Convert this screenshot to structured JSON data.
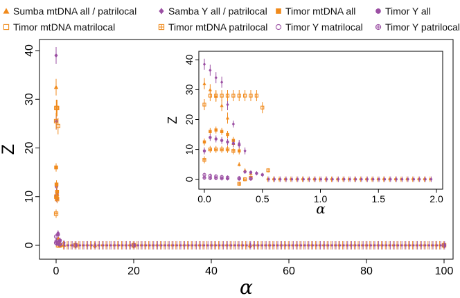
{
  "colors": {
    "orange": "#f08a1c",
    "purple": "#9b4fa3"
  },
  "legend": [
    {
      "label": "Sumba mtDNA all / patrilocal",
      "marker": "triangle-filled",
      "color": "#f08a1c"
    },
    {
      "label": "Samba Y all / patrilocal",
      "marker": "diamond-filled",
      "color": "#9b4fa3"
    },
    {
      "label": "Timor mtDNA all",
      "marker": "square-filled",
      "color": "#f08a1c"
    },
    {
      "label": "Timor Y all",
      "marker": "circle-filled",
      "color": "#9b4fa3"
    },
    {
      "label": "Timor mtDNA matrilocal",
      "marker": "square-open",
      "color": "#f08a1c"
    },
    {
      "label": "Timor mtDNA patrilocal",
      "marker": "square-cross",
      "color": "#f08a1c"
    },
    {
      "label": "Timor Y matrilocal",
      "marker": "circle-open",
      "color": "#9b4fa3"
    },
    {
      "label": "Timor Y patrilocal",
      "marker": "circle-cross",
      "color": "#9b4fa3"
    }
  ],
  "chart_data": [
    {
      "type": "scatter",
      "xlabel": "α",
      "ylabel": "Z",
      "xlim": [
        0,
        100
      ],
      "ylim": [
        -1,
        41
      ],
      "xticks": [
        0,
        20,
        40,
        60,
        80,
        100
      ],
      "yticks": [
        0,
        10,
        20,
        30,
        40
      ],
      "error_bars": true,
      "series": [
        {
          "name": "Sumba mtDNA all / patrilocal",
          "x": [
            0,
            0.25,
            0.5,
            1,
            2,
            5,
            10,
            20,
            50,
            100
          ],
          "y": [
            32.5,
            10.5,
            1.5,
            0.3,
            0.1,
            0,
            0,
            0,
            0,
            0
          ]
        },
        {
          "name": "Samba Y all / patrilocal",
          "x": [
            0,
            0.05,
            0.1,
            0.25,
            0.5,
            1,
            2,
            5,
            10,
            20,
            50,
            100
          ],
          "y": [
            39,
            25.5,
            12,
            10.5,
            2.5,
            1,
            0.5,
            0,
            0,
            0,
            0,
            0
          ]
        },
        {
          "name": "Timor mtDNA all",
          "x": [
            0,
            0.1,
            0.25,
            0.5,
            1,
            5,
            20,
            100
          ],
          "y": [
            16,
            12.5,
            11,
            0.5,
            0.1,
            0,
            0,
            0
          ]
        },
        {
          "name": "Timor Y all",
          "x": [
            0,
            0.1,
            0.25,
            0.5,
            1,
            5,
            20,
            100
          ],
          "y": [
            10,
            9.8,
            9.6,
            2.2,
            1,
            0,
            0,
            0
          ]
        },
        {
          "name": "Timor mtDNA matrilocal",
          "x": [
            0,
            0.05,
            0.1,
            0.25,
            0.5,
            1,
            5,
            20,
            100
          ],
          "y": [
            25.5,
            28.2,
            28.2,
            28.2,
            24.5,
            0,
            0,
            0,
            0
          ]
        },
        {
          "name": "Timor mtDNA patrilocal",
          "x": [
            0,
            0.05,
            0.1,
            0.25,
            0.5,
            1,
            5,
            20,
            100
          ],
          "y": [
            6.5,
            10,
            10,
            9.5,
            0,
            0,
            0,
            0,
            0
          ]
        },
        {
          "name": "Timor Y matrilocal",
          "x": [
            0,
            0.1,
            0.5,
            1,
            5,
            20,
            100
          ],
          "y": [
            1.8,
            0.8,
            0.5,
            0.2,
            0,
            0,
            0
          ]
        },
        {
          "name": "Timor Y patrilocal",
          "x": [
            0,
            0.1,
            0.5,
            1,
            5,
            20,
            100
          ],
          "y": [
            0.5,
            0.5,
            0.4,
            0.2,
            0,
            0,
            0
          ]
        }
      ]
    },
    {
      "type": "scatter",
      "inset": true,
      "xlabel": "α",
      "ylabel": "Z",
      "xlim": [
        0,
        2
      ],
      "ylim": [
        -1,
        41
      ],
      "xticks": [
        0.0,
        0.5,
        1.0,
        1.5,
        2.0
      ],
      "ytick_labels": [
        "0",
        "10",
        "20",
        "30",
        "40"
      ],
      "yticks": [
        0,
        10,
        20,
        30,
        40
      ],
      "xtick_labels": [
        "0.0",
        "0.5",
        "1.0",
        "1.5",
        "2.0"
      ],
      "error_bars": true,
      "series": [
        {
          "name": "Sumba mtDNA all / patrilocal",
          "x": [
            0,
            0.05,
            0.1,
            0.15,
            0.2,
            0.25,
            0.3,
            0.35,
            0.4
          ],
          "y": [
            32,
            30,
            27.8,
            24.7,
            20.5,
            12,
            5,
            3,
            2
          ]
        },
        {
          "name": "Samba Y all / patrilocal",
          "x": [
            0,
            0.05,
            0.1,
            0.15,
            0.2,
            0.25,
            0.3,
            0.35
          ],
          "y": [
            38.5,
            36.5,
            34,
            32.5,
            25,
            18.5,
            12,
            9.5
          ]
        },
        {
          "name": "Timor mtDNA all",
          "x": [
            0,
            0.05,
            0.1,
            0.15,
            0.2,
            0.25,
            0.3
          ],
          "y": [
            12.5,
            16,
            16.5,
            16,
            15,
            13,
            9.5
          ]
        },
        {
          "name": "Timor Y all",
          "x": [
            0,
            0.05,
            0.1,
            0.15,
            0.2,
            0.25,
            0.3,
            0.35,
            0.4,
            0.45,
            0.5
          ],
          "y": [
            9.5,
            14,
            13.5,
            13,
            12.5,
            12,
            11.5,
            2.5,
            2.3,
            2,
            1.5
          ]
        },
        {
          "name": "Timor mtDNA matrilocal",
          "x": [
            0,
            0.05,
            0.1,
            0.15,
            0.2,
            0.25,
            0.3,
            0.35,
            0.4,
            0.45,
            0.5,
            0.55
          ],
          "y": [
            25,
            28,
            28,
            28,
            28,
            28,
            28,
            28,
            28,
            28,
            24,
            3
          ]
        },
        {
          "name": "Timor mtDNA patrilocal",
          "x": [
            0,
            0.05,
            0.1,
            0.15,
            0.2,
            0.25,
            0.3,
            0.35,
            0.4
          ],
          "y": [
            6.5,
            10,
            10,
            10,
            10,
            9.5,
            -1.5,
            0,
            0.5
          ]
        },
        {
          "name": "Timor Y matrilocal",
          "x": [
            0,
            0.05,
            0.1,
            0.15,
            0.2,
            0.3,
            0.4
          ],
          "y": [
            1.5,
            1.2,
            1,
            0.8,
            0.6,
            0.4,
            0.3
          ]
        },
        {
          "name": "Timor Y patrilocal",
          "x": [
            0,
            0.05,
            0.1,
            0.15,
            0.2,
            0.3,
            0.4
          ],
          "y": [
            0.5,
            0.4,
            0.4,
            0.3,
            0.3,
            0.2,
            0.2
          ]
        }
      ]
    }
  ]
}
